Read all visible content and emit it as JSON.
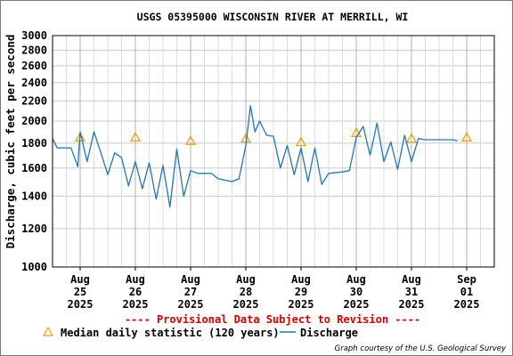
{
  "chart_data": {
    "type": "line",
    "title": "USGS 05395000 WISCONSIN RIVER AT MERRILL, WI",
    "ylabel": "Discharge, cubic feet per second",
    "yscale": "log",
    "ylim": [
      1000,
      3000
    ],
    "yticks": [
      1000,
      1200,
      1400,
      1600,
      1800,
      2000,
      2200,
      2400,
      2600,
      2800,
      3000
    ],
    "xlim": [
      "2025-08-24T12:00",
      "2025-09-01T12:00"
    ],
    "x_tick_labels": [
      {
        "date": "2025-08-25",
        "lines": [
          "Aug",
          "25",
          "2025"
        ]
      },
      {
        "date": "2025-08-26",
        "lines": [
          "Aug",
          "26",
          "2025"
        ]
      },
      {
        "date": "2025-08-27",
        "lines": [
          "Aug",
          "27",
          "2025"
        ]
      },
      {
        "date": "2025-08-28",
        "lines": [
          "Aug",
          "28",
          "2025"
        ]
      },
      {
        "date": "2025-08-29",
        "lines": [
          "Aug",
          "29",
          "2025"
        ]
      },
      {
        "date": "2025-08-30",
        "lines": [
          "Aug",
          "30",
          "2025"
        ]
      },
      {
        "date": "2025-08-31",
        "lines": [
          "Aug",
          "31",
          "2025"
        ]
      },
      {
        "date": "2025-09-01",
        "lines": [
          "Sep",
          "01",
          "2025"
        ]
      }
    ],
    "grid": true,
    "annotation": "---- Provisional Data Subject to Revision ----",
    "credit": "Graph courtesy of the U.S. Geological Survey",
    "series": [
      {
        "name": "Median daily statistic (120 years)",
        "kind": "markers",
        "color": "#e8a000",
        "points": [
          {
            "x": "2025-08-25",
            "y": 1850
          },
          {
            "x": "2025-08-26",
            "y": 1850
          },
          {
            "x": "2025-08-27",
            "y": 1820
          },
          {
            "x": "2025-08-28",
            "y": 1840
          },
          {
            "x": "2025-08-29",
            "y": 1810
          },
          {
            "x": "2025-08-30",
            "y": 1890
          },
          {
            "x": "2025-08-31",
            "y": 1840
          },
          {
            "x": "2025-09-01",
            "y": 1850
          }
        ]
      },
      {
        "name": "Discharge",
        "kind": "line",
        "color": "#1f77b4",
        "points": [
          {
            "x": "2025-08-24T12:00",
            "y": 1840
          },
          {
            "x": "2025-08-24T14:00",
            "y": 1760
          },
          {
            "x": "2025-08-24T20:00",
            "y": 1760
          },
          {
            "x": "2025-08-24T23:00",
            "y": 1610
          },
          {
            "x": "2025-08-25T00:00",
            "y": 1900
          },
          {
            "x": "2025-08-25T03:00",
            "y": 1650
          },
          {
            "x": "2025-08-25T06:00",
            "y": 1900
          },
          {
            "x": "2025-08-25T09:00",
            "y": 1720
          },
          {
            "x": "2025-08-25T12:00",
            "y": 1550
          },
          {
            "x": "2025-08-25T15:00",
            "y": 1720
          },
          {
            "x": "2025-08-25T18:00",
            "y": 1680
          },
          {
            "x": "2025-08-25T21:00",
            "y": 1470
          },
          {
            "x": "2025-08-26T00:00",
            "y": 1650
          },
          {
            "x": "2025-08-26T03:00",
            "y": 1450
          },
          {
            "x": "2025-08-26T06:00",
            "y": 1640
          },
          {
            "x": "2025-08-26T09:00",
            "y": 1380
          },
          {
            "x": "2025-08-26T12:00",
            "y": 1620
          },
          {
            "x": "2025-08-26T15:00",
            "y": 1330
          },
          {
            "x": "2025-08-26T18:00",
            "y": 1750
          },
          {
            "x": "2025-08-26T21:00",
            "y": 1400
          },
          {
            "x": "2025-08-27T00:00",
            "y": 1580
          },
          {
            "x": "2025-08-27T03:00",
            "y": 1560
          },
          {
            "x": "2025-08-27T09:00",
            "y": 1560
          },
          {
            "x": "2025-08-27T12:00",
            "y": 1520
          },
          {
            "x": "2025-08-27T18:00",
            "y": 1500
          },
          {
            "x": "2025-08-27T21:00",
            "y": 1520
          },
          {
            "x": "2025-08-28T00:00",
            "y": 1780
          },
          {
            "x": "2025-08-28T02:00",
            "y": 2150
          },
          {
            "x": "2025-08-28T04:00",
            "y": 1900
          },
          {
            "x": "2025-08-28T06:00",
            "y": 2000
          },
          {
            "x": "2025-08-28T09:00",
            "y": 1870
          },
          {
            "x": "2025-08-28T12:00",
            "y": 1860
          },
          {
            "x": "2025-08-28T15:00",
            "y": 1600
          },
          {
            "x": "2025-08-28T18:00",
            "y": 1780
          },
          {
            "x": "2025-08-28T21:00",
            "y": 1550
          },
          {
            "x": "2025-08-29T00:00",
            "y": 1760
          },
          {
            "x": "2025-08-29T03:00",
            "y": 1500
          },
          {
            "x": "2025-08-29T06:00",
            "y": 1760
          },
          {
            "x": "2025-08-29T09:00",
            "y": 1480
          },
          {
            "x": "2025-08-29T12:00",
            "y": 1560
          },
          {
            "x": "2025-08-29T18:00",
            "y": 1570
          },
          {
            "x": "2025-08-29T21:00",
            "y": 1580
          },
          {
            "x": "2025-08-30T00:00",
            "y": 1850
          },
          {
            "x": "2025-08-30T03:00",
            "y": 1950
          },
          {
            "x": "2025-08-30T06:00",
            "y": 1700
          },
          {
            "x": "2025-08-30T09:00",
            "y": 1980
          },
          {
            "x": "2025-08-30T12:00",
            "y": 1650
          },
          {
            "x": "2025-08-30T15:00",
            "y": 1810
          },
          {
            "x": "2025-08-30T18:00",
            "y": 1590
          },
          {
            "x": "2025-08-30T21:00",
            "y": 1870
          },
          {
            "x": "2025-08-31T00:00",
            "y": 1650
          },
          {
            "x": "2025-08-31T03:00",
            "y": 1840
          },
          {
            "x": "2025-08-31T06:00",
            "y": 1830
          },
          {
            "x": "2025-08-31T12:00",
            "y": 1830
          },
          {
            "x": "2025-08-31T18:00",
            "y": 1830
          },
          {
            "x": "2025-08-31T20:00",
            "y": 1820
          }
        ]
      }
    ]
  }
}
